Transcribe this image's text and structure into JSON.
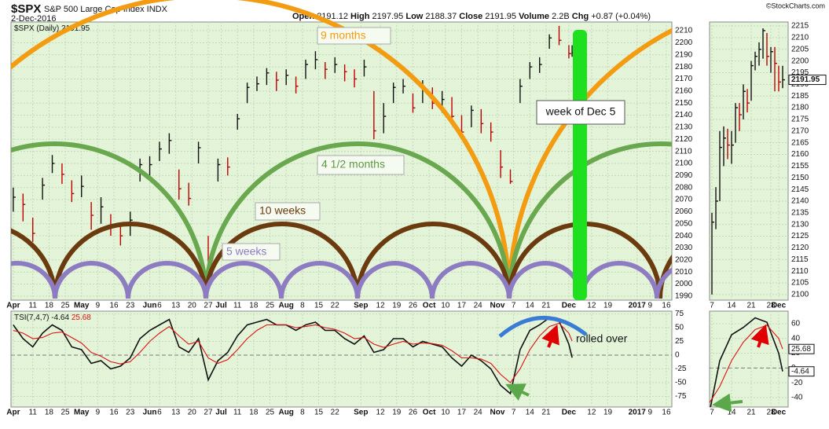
{
  "header": {
    "symbol": "$SPX",
    "name": "S&P 500 Large Cap Index INDX",
    "date": "2-Dec-2016",
    "quote": [
      {
        "label": "Open",
        "value": 2191.12
      },
      {
        "label": "High",
        "value": 2197.95
      },
      {
        "label": "Low",
        "value": 2188.37
      },
      {
        "label": "Close",
        "value": 2191.95
      },
      {
        "label": "Volume",
        "value": "2.2B"
      },
      {
        "label": "Chg",
        "value": "+0.87 (+0.04%)"
      }
    ],
    "credit": "©StockCharts.com"
  },
  "annotations": [
    "9 months",
    "4 1/2 months",
    "10 weeks",
    "5 weeks",
    "week of Dec 5",
    "rolled over"
  ],
  "chart_data": [
    {
      "type": "ohlc",
      "legend": "$SPX (Daily)",
      "up_color": "#111111",
      "down_color": "#c00000",
      "grid": true,
      "x": [
        0,
        3,
        6,
        9,
        12,
        15,
        18,
        21,
        24,
        27,
        30,
        33,
        36,
        39,
        42,
        45,
        48,
        51,
        54,
        57,
        60,
        63,
        66,
        69,
        72,
        75,
        78,
        81,
        84,
        87,
        90,
        93,
        96,
        99,
        102,
        105,
        108,
        111,
        114,
        117,
        120,
        123,
        126,
        129,
        132,
        135,
        138,
        141,
        144,
        147,
        150,
        153,
        156,
        159,
        162,
        165,
        168,
        171,
        172
      ],
      "close": [
        2072,
        2066,
        2042,
        2082,
        2100,
        2091,
        2075,
        2081,
        2057,
        2064,
        2047,
        2040,
        2053,
        2099,
        2099,
        2112,
        2119,
        2079,
        2071,
        2113,
        2000,
        2099,
        2097,
        2137,
        2163,
        2166,
        2175,
        2169,
        2173,
        2164,
        2182,
        2186,
        2178,
        2182,
        2176,
        2170,
        2180,
        2127,
        2139,
        2163,
        2164,
        2146,
        2161,
        2150,
        2153,
        2139,
        2126,
        2144,
        2133,
        2126,
        2097,
        2085,
        2164,
        2180,
        2182,
        2204,
        2202,
        2191,
        2191.95
      ],
      "high": [
        2080,
        2075,
        2055,
        2088,
        2107,
        2100,
        2086,
        2090,
        2068,
        2072,
        2058,
        2050,
        2060,
        2104,
        2106,
        2118,
        2125,
        2095,
        2084,
        2118,
        2040,
        2104,
        2105,
        2141,
        2167,
        2172,
        2179,
        2176,
        2178,
        2172,
        2186,
        2193,
        2184,
        2188,
        2182,
        2178,
        2186,
        2160,
        2150,
        2167,
        2170,
        2158,
        2169,
        2163,
        2160,
        2155,
        2140,
        2148,
        2145,
        2134,
        2111,
        2095,
        2170,
        2184,
        2188,
        2207,
        2214,
        2198,
        2197.95
      ],
      "low": [
        2060,
        2052,
        2035,
        2070,
        2092,
        2083,
        2068,
        2072,
        2045,
        2050,
        2040,
        2032,
        2040,
        2085,
        2090,
        2102,
        2108,
        2070,
        2065,
        2100,
        1995,
        2085,
        2090,
        2128,
        2150,
        2160,
        2165,
        2160,
        2165,
        2158,
        2170,
        2178,
        2170,
        2175,
        2168,
        2163,
        2172,
        2120,
        2125,
        2150,
        2158,
        2142,
        2150,
        2145,
        2142,
        2133,
        2120,
        2130,
        2125,
        2118,
        2088,
        2083,
        2150,
        2170,
        2175,
        2195,
        2198,
        2187,
        2188.37
      ],
      "xlim": [
        -0.7,
        202.7
      ],
      "xticks": [
        {
          "value": 0,
          "label": "Apr"
        },
        {
          "value": 6,
          "label": "11"
        },
        {
          "value": 11,
          "label": "18"
        },
        {
          "value": 16,
          "label": "25"
        },
        {
          "value": 21,
          "label": "May"
        },
        {
          "value": 26,
          "label": "9"
        },
        {
          "value": 31,
          "label": "16"
        },
        {
          "value": 36,
          "label": "23"
        },
        {
          "value": 42,
          "label": "Jun"
        },
        {
          "value": 45,
          "label": "6"
        },
        {
          "value": 50,
          "label": "13"
        },
        {
          "value": 55,
          "label": "20"
        },
        {
          "value": 60,
          "label": "27"
        },
        {
          "value": 64,
          "label": "Jul"
        },
        {
          "value": 69,
          "label": "11"
        },
        {
          "value": 74,
          "label": "18"
        },
        {
          "value": 79,
          "label": "25"
        },
        {
          "value": 84,
          "label": "Aug"
        },
        {
          "value": 89,
          "label": "8"
        },
        {
          "value": 94,
          "label": "15"
        },
        {
          "value": 99,
          "label": "22"
        },
        {
          "value": 107,
          "label": "Sep"
        },
        {
          "value": 113,
          "label": "12"
        },
        {
          "value": 118,
          "label": "19"
        },
        {
          "value": 123,
          "label": "26"
        },
        {
          "value": 128,
          "label": "Oct"
        },
        {
          "value": 133,
          "label": "10"
        },
        {
          "value": 138,
          "label": "17"
        },
        {
          "value": 143,
          "label": "24"
        },
        {
          "value": 149,
          "label": "Nov"
        },
        {
          "value": 154,
          "label": "7"
        },
        {
          "value": 159,
          "label": "14"
        },
        {
          "value": 164,
          "label": "21"
        },
        {
          "value": 171,
          "label": "Dec"
        },
        {
          "value": 178,
          "label": "12"
        },
        {
          "value": 183,
          "label": "19"
        },
        {
          "value": 192,
          "label": "2017"
        },
        {
          "value": 196,
          "label": "9"
        },
        {
          "value": 201,
          "label": "16"
        }
      ],
      "ylim": [
        1986.7,
        2217.2
      ],
      "yticks": [
        1990,
        2000,
        2010,
        2020,
        2030,
        2040,
        2050,
        2060,
        2070,
        2080,
        2090,
        2100,
        2110,
        2120,
        2130,
        2140,
        2150,
        2160,
        2170,
        2180,
        2190,
        2200,
        2210
      ]
    },
    {
      "type": "line",
      "legend": "TSI(7,4,7)",
      "grid": true,
      "x": [
        0,
        3,
        6,
        9,
        12,
        15,
        18,
        21,
        24,
        27,
        30,
        33,
        36,
        39,
        42,
        45,
        48,
        51,
        54,
        57,
        60,
        63,
        66,
        69,
        72,
        75,
        78,
        81,
        84,
        87,
        90,
        93,
        96,
        99,
        102,
        105,
        108,
        111,
        114,
        117,
        120,
        123,
        126,
        129,
        132,
        135,
        138,
        141,
        144,
        147,
        150,
        153,
        156,
        159,
        162,
        165,
        168,
        171,
        172
      ],
      "series": [
        {
          "color": "#111111",
          "values": [
            55,
            30,
            15,
            40,
            55,
            45,
            15,
            10,
            -15,
            -10,
            -25,
            -20,
            -5,
            30,
            45,
            55,
            65,
            15,
            5,
            30,
            -45,
            -10,
            5,
            35,
            55,
            60,
            65,
            55,
            55,
            45,
            55,
            60,
            45,
            45,
            30,
            20,
            35,
            5,
            10,
            30,
            30,
            15,
            25,
            20,
            15,
            -5,
            -20,
            0,
            -10,
            -25,
            -55,
            -70,
            10,
            45,
            55,
            68,
            62,
            20,
            -4.64
          ]
        },
        {
          "color": "#dd1111",
          "values": [
            45,
            40,
            30,
            32,
            40,
            42,
            32,
            22,
            5,
            -2,
            -12,
            -16,
            -12,
            5,
            25,
            40,
            52,
            35,
            20,
            25,
            -5,
            -15,
            -8,
            10,
            30,
            45,
            55,
            55,
            55,
            50,
            52,
            55,
            50,
            47,
            40,
            30,
            32,
            20,
            14,
            20,
            25,
            20,
            22,
            21,
            18,
            8,
            -5,
            -5,
            -7,
            -15,
            -35,
            -50,
            -25,
            10,
            35,
            52,
            58,
            40,
            25.68
          ]
        }
      ],
      "ylim": [
        -94.3,
        80
      ],
      "yticks": [
        -75,
        -50,
        -25,
        0,
        25,
        50,
        75
      ]
    },
    {
      "type": "ohlc",
      "up_color": "#111111",
      "down_color": "#c00000",
      "grid": true,
      "last_value_box": true,
      "x": [
        154,
        155,
        156,
        157,
        158,
        159,
        160,
        161,
        162,
        163,
        164,
        165,
        166,
        167,
        168,
        169,
        170,
        171,
        172
      ],
      "close": [
        2131,
        2140,
        2163,
        2167,
        2164,
        2164,
        2180,
        2177,
        2187,
        2182,
        2198,
        2202,
        2205,
        2213,
        2202,
        2204,
        2199,
        2191,
        2191.95
      ],
      "high": [
        2135,
        2146,
        2170,
        2172,
        2171,
        2170,
        2182,
        2182,
        2190,
        2188,
        2200,
        2204,
        2208,
        2214,
        2212,
        2206,
        2206,
        2198,
        2197.95
      ],
      "low": [
        2100,
        2128,
        2140,
        2155,
        2158,
        2156,
        2165,
        2170,
        2175,
        2178,
        2183,
        2196,
        2198,
        2201,
        2198,
        2195,
        2187,
        2187,
        2188.37
      ],
      "xlim": [
        153.4,
        173.4
      ],
      "xticks": [
        {
          "value": 154,
          "label": "7"
        },
        {
          "value": 159,
          "label": "14"
        },
        {
          "value": 164,
          "label": "21"
        },
        {
          "value": 169,
          "label": "28"
        },
        {
          "value": 171,
          "label": "Dec"
        }
      ],
      "ylim": [
        2097.6,
        2216.7
      ],
      "yticks": [
        2100,
        2105,
        2110,
        2115,
        2120,
        2125,
        2130,
        2135,
        2140,
        2145,
        2150,
        2155,
        2160,
        2165,
        2170,
        2175,
        2180,
        2185,
        2190,
        2195,
        2200,
        2205,
        2210,
        2215
      ]
    },
    {
      "type": "line",
      "grid": true,
      "last_value_box": true,
      "ylim": [
        -52.8,
        77
      ],
      "yticks": [
        -40,
        -20,
        0,
        20,
        40,
        60
      ]
    }
  ]
}
